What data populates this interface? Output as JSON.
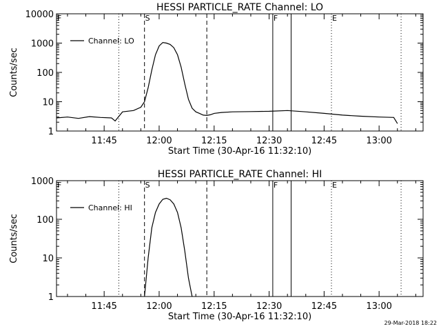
{
  "chart_data": [
    {
      "type": "line",
      "title": "HESSI PARTICLE_RATE Channel: LO",
      "xlabel": "Start Time (30-Apr-16 11:32:10)",
      "ylabel": "Counts/sec",
      "y_scale": "log",
      "ylim": [
        1,
        10000
      ],
      "y_ticks": [
        "1",
        "10",
        "100",
        "1000",
        "10000"
      ],
      "xlim": [
        "11:32",
        "13:12"
      ],
      "x_ticks": [
        "11:45",
        "12:00",
        "12:15",
        "12:30",
        "12:45",
        "13:00"
      ],
      "legend": "top-left",
      "series": [
        {
          "name": "Channel: LO",
          "x": [
            "11:32",
            "11:35",
            "11:38",
            "11:41",
            "11:44",
            "11:47",
            "11:48",
            "11:50",
            "11:53",
            "11:55",
            "11:56",
            "11:57",
            "11:58",
            "11:59",
            "12:00",
            "12:01",
            "12:02",
            "12:03",
            "12:04",
            "12:05",
            "12:06",
            "12:07",
            "12:08",
            "12:09",
            "12:10",
            "12:11",
            "12:12",
            "12:13",
            "12:14",
            "12:15",
            "12:17",
            "12:20",
            "12:25",
            "12:30",
            "12:35",
            "12:40",
            "12:45",
            "12:50",
            "12:55",
            "13:00",
            "13:04",
            "13:05"
          ],
          "y": [
            2.8,
            3.0,
            2.7,
            3.1,
            2.9,
            2.8,
            2.2,
            4.5,
            5.0,
            6.5,
            10,
            30,
            120,
            400,
            800,
            1050,
            1000,
            900,
            700,
            400,
            150,
            40,
            12,
            6,
            4.5,
            4.0,
            3.5,
            3.4,
            3.6,
            4.0,
            4.3,
            4.5,
            4.6,
            4.7,
            5.0,
            4.5,
            4.0,
            3.5,
            3.2,
            3.0,
            2.9,
            1.8
          ]
        }
      ],
      "markers": [
        {
          "label": "F",
          "time": "11:32",
          "style": "dotted"
        },
        {
          "label": "S",
          "time": "11:56",
          "style": "dashed"
        },
        {
          "label": "",
          "time": "11:49",
          "style": "dotted"
        },
        {
          "label": "",
          "time": "12:13",
          "style": "dashed"
        },
        {
          "label": "F",
          "time": "12:31",
          "style": "solid"
        },
        {
          "label": "",
          "time": "12:36",
          "style": "solid"
        },
        {
          "label": "E",
          "time": "12:47",
          "style": "dotted"
        },
        {
          "label": "",
          "time": "13:06",
          "style": "dotted"
        }
      ]
    },
    {
      "type": "line",
      "title": "HESSI PARTICLE_RATE Channel: HI",
      "xlabel": "Start Time (30-Apr-16 11:32:10)",
      "ylabel": "Counts/sec",
      "y_scale": "log",
      "ylim": [
        1,
        1000
      ],
      "y_ticks": [
        "1",
        "10",
        "100",
        "1000"
      ],
      "xlim": [
        "11:32",
        "13:12"
      ],
      "x_ticks": [
        "11:45",
        "12:00",
        "12:15",
        "12:30",
        "12:45",
        "13:00"
      ],
      "legend": "top-left",
      "series": [
        {
          "name": "Channel: HI",
          "x": [
            "11:56",
            "11:57",
            "11:58",
            "11:59",
            "12:00",
            "12:01",
            "12:02",
            "12:03",
            "12:04",
            "12:05",
            "12:06",
            "12:07",
            "12:08",
            "12:09"
          ],
          "y": [
            1.0,
            10,
            60,
            150,
            250,
            330,
            350,
            320,
            250,
            150,
            60,
            15,
            3,
            1.0
          ]
        }
      ],
      "markers": [
        {
          "label": "F",
          "time": "11:32",
          "style": "dotted"
        },
        {
          "label": "S",
          "time": "11:56",
          "style": "dashed"
        },
        {
          "label": "",
          "time": "11:49",
          "style": "dotted"
        },
        {
          "label": "",
          "time": "12:13",
          "style": "dashed"
        },
        {
          "label": "F",
          "time": "12:31",
          "style": "solid"
        },
        {
          "label": "",
          "time": "12:36",
          "style": "solid"
        },
        {
          "label": "E",
          "time": "12:47",
          "style": "dotted"
        },
        {
          "label": "",
          "time": "13:06",
          "style": "dotted"
        }
      ]
    }
  ],
  "footer_timestamp": "29-Mar-2018 18:22"
}
